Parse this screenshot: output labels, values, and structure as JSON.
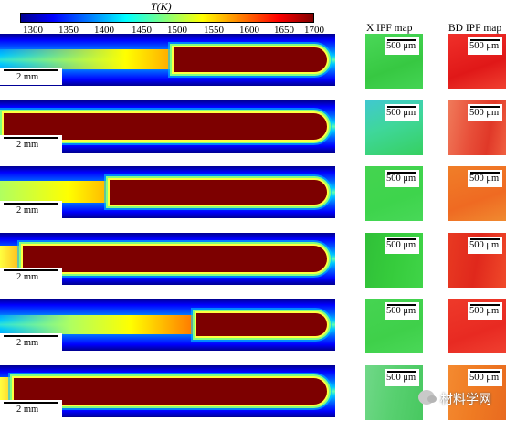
{
  "figure": {
    "colorbar": {
      "label": "T(K)",
      "ticks": [
        "1300",
        "1350",
        "1400",
        "1450",
        "1500",
        "1550",
        "1600",
        "1650",
        "1700"
      ]
    },
    "headers": {
      "x_ipf": "X IPF map",
      "bd_ipf": "BD IPF map"
    },
    "rows": [
      {
        "scale": "2 mm",
        "x_scale": "500 μm",
        "bd_scale": "500 μm",
        "x_color": "#3ed04a",
        "bd_color": "#e8241c"
      },
      {
        "scale": "2 mm",
        "x_scale": "500 μm",
        "bd_scale": "500 μm",
        "x_color": "#3fd79a",
        "bd_color": "#e8503a"
      },
      {
        "scale": "2 mm",
        "x_scale": "500 μm",
        "bd_scale": "500 μm",
        "x_color": "#3ed44c",
        "bd_color": "#ef6a22"
      },
      {
        "scale": "2 mm",
        "x_scale": "500 μm",
        "bd_scale": "500 μm",
        "x_color": "#36cc3c",
        "bd_color": "#e0281c"
      },
      {
        "scale": "2 mm",
        "x_scale": "500 μm",
        "bd_scale": "500 μm",
        "x_color": "#3fd04a",
        "bd_color": "#e82a22"
      },
      {
        "scale": "2 mm",
        "x_scale": "500 μm",
        "bd_scale": "500 μm",
        "x_color": "#58d070",
        "bd_color": "#ef7a22"
      }
    ],
    "watermark": "材料学网"
  }
}
